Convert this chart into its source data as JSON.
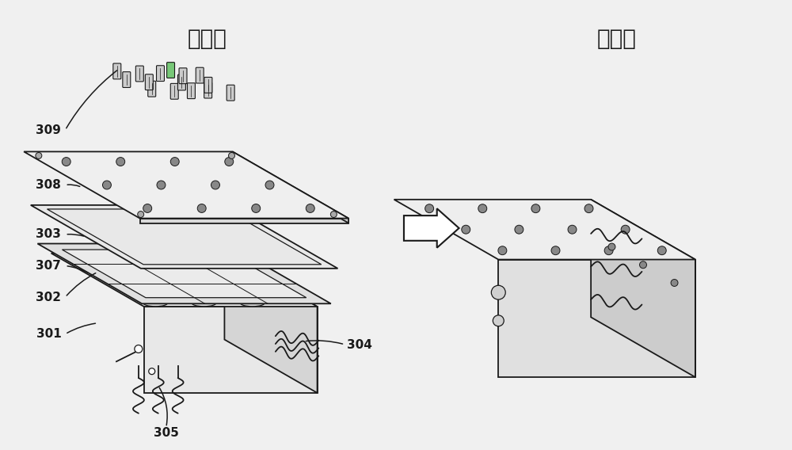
{
  "title_left": "装配前",
  "title_right": "装配后",
  "title_fontsize": 20,
  "bg_color": "#f0f0f0",
  "line_color": "#1a1a1a",
  "label_fontsize": 11,
  "arrow_color": "#ffffff"
}
